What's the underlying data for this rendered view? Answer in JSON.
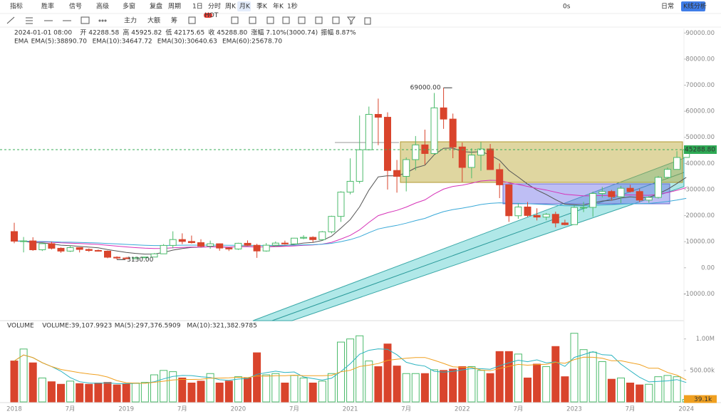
{
  "toolbar": {
    "row1": [
      "指标",
      "胜率",
      "信号",
      "高级",
      "多窗",
      "复盘",
      "周期",
      "1日",
      "分时",
      "周K",
      "月K",
      "季K",
      "年K",
      "1秒"
    ],
    "right": [
      "0s",
      "日常",
      "K线分析"
    ],
    "row2": [
      "主力",
      "大额",
      "筹",
      "HOT"
    ]
  },
  "legend": {
    "ohlc": [
      "2024-01-01 08:00",
      "开 42288.58",
      "高 45925.82",
      "低 42175.65",
      "收 45288.80",
      "涨幅 7.10%(3000.74)",
      "振幅 8.87%"
    ],
    "ema": [
      {
        "text": "EMA",
        "color": "#333333"
      },
      {
        "text": "EMA(5):38890.70",
        "color": "#bbbbbb"
      },
      {
        "text": "EMA(10):34647.72",
        "color": "#333333"
      },
      {
        "text": "EMA(30):30640.63",
        "color": "#d633b8"
      },
      {
        "text": "EMA(60):25678.70",
        "color": "#3aa9d8"
      }
    ],
    "volume": [
      {
        "text": "VOLUME",
        "color": "#333333"
      },
      {
        "text": "VOLUME:39,107.9923",
        "color": "#333333"
      },
      {
        "text": "MA(5):297,376.5909",
        "color": "#2bb3c0"
      },
      {
        "text": "MA(10):321,382.9785",
        "color": "#f0a020"
      }
    ]
  },
  "chart_data": [
    {
      "type": "candlestick",
      "up_color": "#4cbb6c",
      "down_color": "#d9442c",
      "ylim": [
        -20000,
        95000
      ],
      "yticks": [
        {
          "value": 90000,
          "label": "90000.00"
        },
        {
          "value": 80000,
          "label": "80000.00"
        },
        {
          "value": 70000,
          "label": "70000.00"
        },
        {
          "value": 60000,
          "label": "60000.00"
        },
        {
          "value": 50000,
          "label": "50000.00"
        },
        {
          "value": 40000,
          "label": "40000.00"
        },
        {
          "value": 30000,
          "label": "30000.00"
        },
        {
          "value": 20000,
          "label": "20000.00"
        },
        {
          "value": 10000,
          "label": "10000.00"
        },
        {
          "value": 0,
          "label": "0.00"
        },
        {
          "value": -10000,
          "label": "-10000.00"
        }
      ],
      "categories": [
        "2018",
        null,
        null,
        null,
        null,
        null,
        "7月",
        null,
        null,
        null,
        null,
        null,
        "2019",
        null,
        null,
        null,
        null,
        null,
        "7月",
        null,
        null,
        null,
        null,
        null,
        "2020",
        null,
        null,
        null,
        null,
        null,
        "7月",
        null,
        null,
        null,
        null,
        null,
        "2021",
        null,
        null,
        null,
        null,
        null,
        "7月",
        null,
        null,
        null,
        null,
        null,
        "2022",
        null,
        null,
        null,
        null,
        null,
        "7月",
        null,
        null,
        null,
        null,
        null,
        "2023",
        null,
        null,
        null,
        null,
        null,
        "7月",
        null,
        null,
        null,
        null,
        null,
        "2024"
      ],
      "open": [
        13880,
        10200,
        10300,
        6900,
        9240,
        7480,
        6390,
        7730,
        7030,
        6630,
        6370,
        4040,
        3740,
        3460,
        3850,
        4110,
        5350,
        8570,
        10820,
        10090,
        9630,
        8300,
        9200,
        7560,
        7200,
        9390,
        8620,
        6440,
        8650,
        9460,
        9140,
        11350,
        11660,
        10790,
        13800,
        19700,
        28990,
        33140,
        45240,
        58800,
        57700,
        37300,
        35040,
        41460,
        47100,
        43800,
        61300,
        57000,
        46300,
        38470,
        43190,
        45540,
        37640,
        31800,
        19940,
        23300,
        20050,
        19430,
        20490,
        17170,
        16540,
        23130,
        23150,
        28480,
        29240,
        27220,
        30480,
        29230,
        25940,
        26970,
        34660,
        37720,
        42288.58
      ],
      "high": [
        17250,
        11800,
        11700,
        9750,
        10000,
        7790,
        8500,
        7760,
        7410,
        7000,
        6600,
        4400,
        4140,
        4200,
        4140,
        5640,
        9080,
        13970,
        13200,
        12350,
        10950,
        10400,
        9300,
        7750,
        9580,
        10500,
        9200,
        9470,
        10080,
        10400,
        11450,
        12480,
        12070,
        14100,
        19950,
        29300,
        41950,
        58350,
        61790,
        64850,
        59600,
        41330,
        42300,
        50500,
        52950,
        67000,
        69000,
        59100,
        47990,
        45800,
        48200,
        47450,
        40000,
        31950,
        24670,
        25200,
        22800,
        21000,
        21500,
        18400,
        23960,
        25250,
        29200,
        31000,
        29820,
        31390,
        31800,
        30250,
        27480,
        35200,
        38450,
        44700,
        45925.82
      ],
      "low": [
        9400,
        5900,
        6500,
        6430,
        7000,
        5750,
        6070,
        5880,
        6100,
        6200,
        3650,
        3130,
        3350,
        3390,
        3700,
        4080,
        5330,
        7470,
        9050,
        9300,
        7730,
        7300,
        6530,
        6420,
        6850,
        8450,
        3800,
        6150,
        8100,
        8850,
        8900,
        10950,
        9820,
        10400,
        13200,
        17600,
        28130,
        32300,
        45000,
        47000,
        30000,
        28800,
        29280,
        37330,
        39600,
        43300,
        53250,
        42000,
        32900,
        34300,
        37150,
        37700,
        26700,
        17600,
        18780,
        19520,
        18150,
        18200,
        15480,
        16260,
        16500,
        21350,
        19550,
        26950,
        25800,
        24800,
        28860,
        25170,
        24900,
        26540,
        34100,
        37620,
        42175.65
      ],
      "close": [
        10200,
        10300,
        6900,
        9240,
        7480,
        6390,
        7730,
        7030,
        6630,
        6370,
        4040,
        3740,
        3460,
        3850,
        4110,
        5350,
        8570,
        10820,
        10090,
        9630,
        8300,
        9200,
        7560,
        7200,
        9390,
        8620,
        6440,
        8650,
        9460,
        9140,
        11350,
        11660,
        10790,
        13800,
        19700,
        28990,
        33140,
        45240,
        58800,
        57700,
        37300,
        35040,
        41460,
        47100,
        43800,
        61300,
        57000,
        46300,
        38470,
        43190,
        45540,
        37640,
        31800,
        19940,
        23300,
        20050,
        19430,
        20490,
        17170,
        16540,
        23130,
        23150,
        28480,
        29240,
        27220,
        30480,
        29230,
        25940,
        26970,
        34660,
        37720,
        42280,
        45288.8
      ],
      "price_tag": {
        "value": 45288.8,
        "label": "45288.80"
      },
      "annotations": [
        {
          "value": 69000,
          "label": "69000.00"
        },
        {
          "value": 3130,
          "label": "3130.00"
        }
      ]
    },
    {
      "type": "bar",
      "ylim": [
        0,
        1200000
      ],
      "yticks": [
        {
          "value": 1000000,
          "label": "1.00M"
        },
        {
          "value": 500000,
          "label": "500.00k"
        }
      ],
      "values": [
        650000,
        840000,
        620000,
        380000,
        320000,
        280000,
        330000,
        290000,
        280000,
        300000,
        310000,
        270000,
        290000,
        300000,
        310000,
        430000,
        500000,
        480000,
        380000,
        300000,
        330000,
        450000,
        300000,
        330000,
        400000,
        380000,
        780000,
        430000,
        450000,
        300000,
        420000,
        380000,
        300000,
        330000,
        450000,
        950000,
        1000000,
        1050000,
        650000,
        560000,
        920000,
        570000,
        450000,
        450000,
        450000,
        510000,
        500000,
        520000,
        560000,
        560000,
        500000,
        450000,
        800000,
        800000,
        760000,
        380000,
        600000,
        560000,
        880000,
        400000,
        1090000,
        830000,
        790000,
        640000,
        360000,
        380000,
        300000,
        270000,
        280000,
        400000,
        420000,
        400000,
        39107.9923
      ],
      "value_tag": {
        "value": 39107.9923,
        "label": "39.1k"
      }
    }
  ]
}
